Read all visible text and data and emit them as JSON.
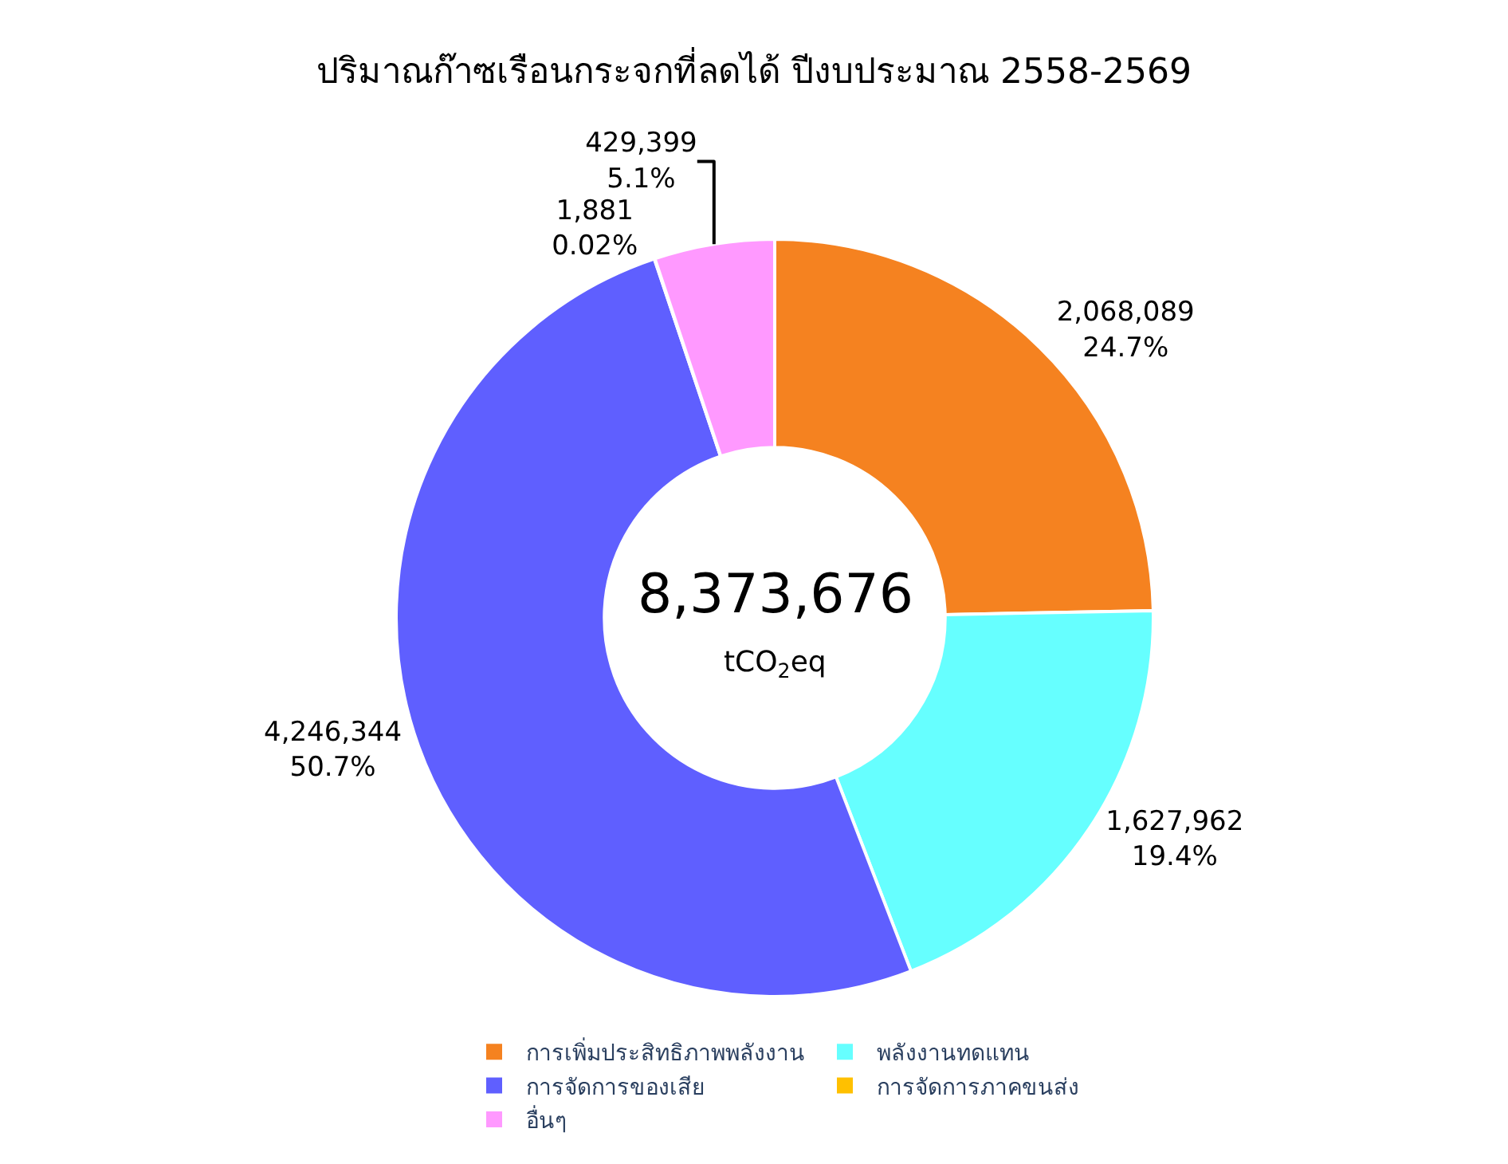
{
  "chart_data": {
    "type": "donut",
    "title": "ปริมาณก๊าซเรือนกระจกที่ลดได้ ปีงบประมาณ 2558-2569",
    "categories": [
      "การเพิ่มประสิทธิภาพพลังงาน",
      "พลังงานทดแทน",
      "การจัดการของเสีย",
      "การจัดการภาคขนส่ง",
      "อื่นๆ"
    ],
    "values": [
      2068089,
      1627962,
      4246344,
      1881,
      429399
    ],
    "colors": [
      "#f58220",
      "#66ffff",
      "#5f5fff",
      "#ffc000",
      "#ff99ff"
    ],
    "value_labels": [
      "2,068,089\n24.7%",
      "1,627,962\n19.4%",
      "4,246,344\n50.7%",
      "1,881\n0.02%",
      "429,399\n5.1%"
    ],
    "annotations": [
      "8,373,676",
      "tCO$_{2}$eq"
    ],
    "legend": "bottom"
  }
}
